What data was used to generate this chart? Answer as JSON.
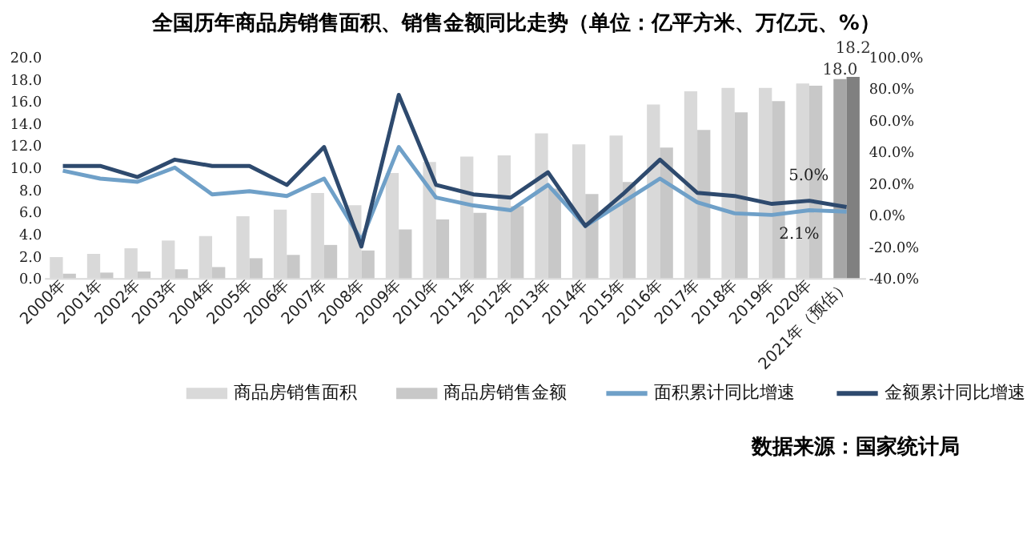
{
  "chart_data": {
    "type": "bar",
    "title": "全国历年商品房销售面积、销售金额同比走势（单位：亿平方米、万亿元、%）",
    "categories": [
      "2000年",
      "2001年",
      "2002年",
      "2003年",
      "2004年",
      "2005年",
      "2006年",
      "2007年",
      "2008年",
      "2009年",
      "2010年",
      "2011年",
      "2012年",
      "2013年",
      "2014年",
      "2015年",
      "2016年",
      "2017年",
      "2018年",
      "2019年",
      "2020年",
      "2021年（预估）"
    ],
    "series": [
      {
        "name": "商品房销售面积",
        "type": "bar",
        "colors": [
          "#d9d9d9",
          "#d9d9d9",
          "#d9d9d9",
          "#d9d9d9",
          "#d9d9d9",
          "#d9d9d9",
          "#d9d9d9",
          "#d9d9d9",
          "#d9d9d9",
          "#d9d9d9",
          "#d9d9d9",
          "#d9d9d9",
          "#d9d9d9",
          "#d9d9d9",
          "#d9d9d9",
          "#d9d9d9",
          "#d9d9d9",
          "#d9d9d9",
          "#d9d9d9",
          "#d9d9d9",
          "#d9d9d9",
          "#a6a6a6"
        ],
        "values": [
          1.9,
          2.2,
          2.7,
          3.4,
          3.8,
          5.6,
          6.2,
          7.7,
          6.6,
          9.5,
          10.5,
          11.0,
          11.1,
          13.1,
          12.1,
          12.9,
          15.7,
          16.9,
          17.2,
          17.2,
          17.6,
          18.0
        ],
        "value_labels": [
          null,
          null,
          null,
          null,
          null,
          null,
          null,
          null,
          null,
          null,
          null,
          null,
          null,
          null,
          null,
          null,
          null,
          null,
          null,
          null,
          null,
          "18.0"
        ]
      },
      {
        "name": "商品房销售金额",
        "type": "bar",
        "colors": [
          "#c8c8c8",
          "#c8c8c8",
          "#c8c8c8",
          "#c8c8c8",
          "#c8c8c8",
          "#c8c8c8",
          "#c8c8c8",
          "#c8c8c8",
          "#c8c8c8",
          "#c8c8c8",
          "#c8c8c8",
          "#c8c8c8",
          "#c8c8c8",
          "#c8c8c8",
          "#c8c8c8",
          "#c8c8c8",
          "#c8c8c8",
          "#c8c8c8",
          "#c8c8c8",
          "#c8c8c8",
          "#c8c8c8",
          "#808080"
        ],
        "values": [
          0.4,
          0.5,
          0.6,
          0.8,
          1.0,
          1.8,
          2.1,
          3.0,
          2.5,
          4.4,
          5.3,
          5.9,
          6.5,
          8.1,
          7.6,
          8.7,
          11.8,
          13.4,
          15.0,
          16.0,
          17.4,
          18.2
        ],
        "value_labels": [
          null,
          null,
          null,
          null,
          null,
          null,
          null,
          null,
          null,
          null,
          null,
          null,
          null,
          null,
          null,
          null,
          null,
          null,
          null,
          null,
          null,
          "18.2"
        ]
      },
      {
        "name": "面积累计同比增速",
        "type": "line",
        "axis": "y2",
        "color": "#6fa0c8",
        "values": [
          28,
          23,
          21,
          30,
          13,
          15,
          12,
          23,
          -16,
          43,
          11,
          6,
          3,
          19,
          -7,
          8,
          23,
          8,
          1,
          0,
          3,
          2.1
        ],
        "value_labels": [
          null,
          null,
          null,
          null,
          null,
          null,
          null,
          null,
          null,
          null,
          null,
          null,
          null,
          null,
          null,
          null,
          null,
          null,
          null,
          null,
          null,
          "2.1%"
        ]
      },
      {
        "name": "金额累计同比增速",
        "type": "line",
        "axis": "y2",
        "color": "#2e4a6e",
        "values": [
          31,
          31,
          24,
          35,
          31,
          31,
          19,
          43,
          -20,
          76,
          19,
          13,
          11,
          27,
          -7,
          13,
          35,
          14,
          12,
          7,
          9,
          5.0
        ],
        "value_labels": [
          null,
          null,
          null,
          null,
          null,
          null,
          null,
          null,
          null,
          null,
          null,
          null,
          null,
          null,
          null,
          null,
          null,
          null,
          null,
          null,
          null,
          "5.0%"
        ]
      }
    ],
    "ylim": [
      0,
      20
    ],
    "yticks": [
      {
        "value": 0,
        "label": "0.0"
      },
      {
        "value": 2,
        "label": "2.0"
      },
      {
        "value": 4,
        "label": "4.0"
      },
      {
        "value": 6,
        "label": "6.0"
      },
      {
        "value": 8,
        "label": "8.0"
      },
      {
        "value": 10,
        "label": "10.0"
      },
      {
        "value": 12,
        "label": "12.0"
      },
      {
        "value": 14,
        "label": "14.0"
      },
      {
        "value": 16,
        "label": "16.0"
      },
      {
        "value": 18,
        "label": "18.0"
      },
      {
        "value": 20,
        "label": "20.0"
      }
    ],
    "y2lim": [
      -40,
      100
    ],
    "y2ticks": [
      {
        "value": -40,
        "label": "-40.0%"
      },
      {
        "value": -20,
        "label": "-20.0%"
      },
      {
        "value": 0,
        "label": "0.0%"
      },
      {
        "value": 20,
        "label": "20.0%"
      },
      {
        "value": 40,
        "label": "40.0%"
      },
      {
        "value": 60,
        "label": "60.0%"
      },
      {
        "value": 80,
        "label": "80.0%"
      },
      {
        "value": 100,
        "label": "100.0%"
      }
    ],
    "grid": false,
    "legend": "bottom",
    "line_style": "solid",
    "marker": "none",
    "annotations": [
      "数据来源：国家统计局"
    ]
  }
}
